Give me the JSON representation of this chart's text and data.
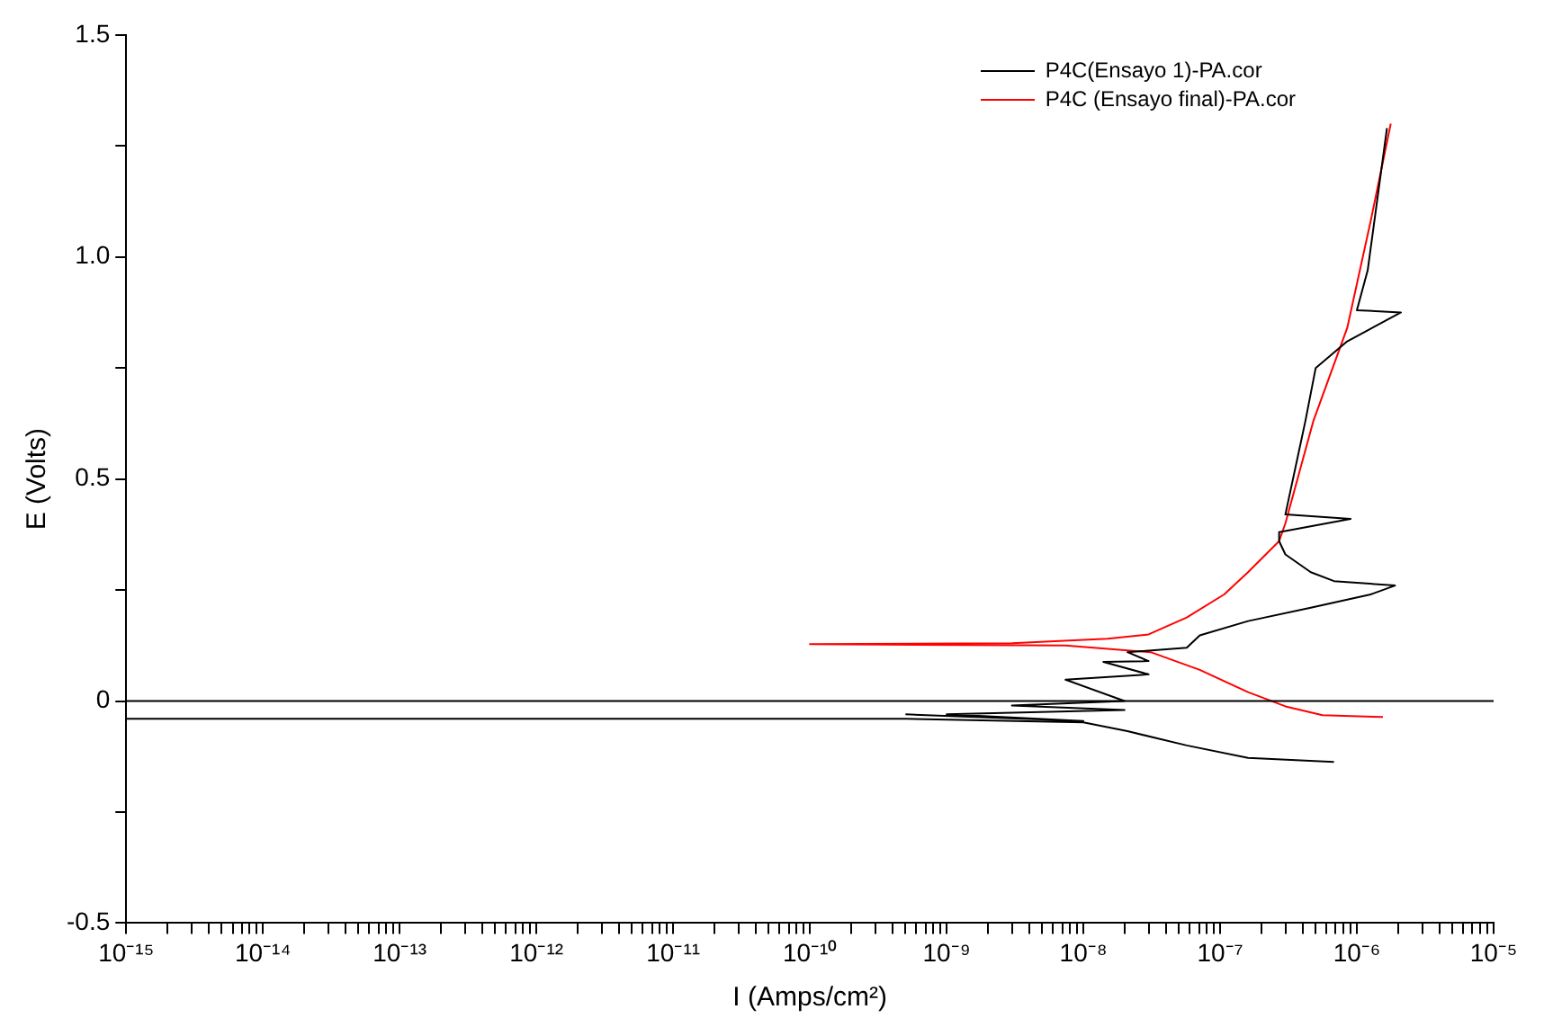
{
  "chart_data": {
    "type": "line",
    "xlabel": "I (Amps/cm²)",
    "ylabel": "E (Volts)",
    "log": "x",
    "marker": "none",
    "line_style": "solid",
    "grid": false,
    "legend": "top right",
    "xlim": [
      1e-15,
      1e-05
    ],
    "ylim": [
      -0.5,
      1.5
    ],
    "xticks": [
      {
        "value": 1e-15,
        "label": "10⁻¹⁵"
      },
      {
        "value": 1e-14,
        "label": "10⁻¹⁴"
      },
      {
        "value": 1e-13,
        "label": "10⁻¹³"
      },
      {
        "value": 1e-12,
        "label": "10⁻¹²"
      },
      {
        "value": 1e-11,
        "label": "10⁻¹¹"
      },
      {
        "value": 1e-10,
        "label": "10⁻¹⁰"
      },
      {
        "value": 1e-09,
        "label": "10⁻⁹"
      },
      {
        "value": 1e-08,
        "label": "10⁻⁸"
      },
      {
        "value": 1e-07,
        "label": "10⁻⁷"
      },
      {
        "value": 1e-06,
        "label": "10⁻⁶"
      },
      {
        "value": 1e-05,
        "label": "10⁻⁵"
      },
      {
        "value": 2e-15,
        "label": null
      },
      {
        "value": 3e-15,
        "label": null
      },
      {
        "value": 4e-15,
        "label": null
      },
      {
        "value": 5e-15,
        "label": null
      },
      {
        "value": 6e-15,
        "label": null
      },
      {
        "value": 7e-15,
        "label": null
      },
      {
        "value": 8e-15,
        "label": null
      },
      {
        "value": 9e-15,
        "label": null
      },
      {
        "value": 2e-14,
        "label": null
      },
      {
        "value": 3e-14,
        "label": null
      },
      {
        "value": 4e-14,
        "label": null
      },
      {
        "value": 5e-14,
        "label": null
      },
      {
        "value": 6e-14,
        "label": null
      },
      {
        "value": 7e-14,
        "label": null
      },
      {
        "value": 8e-14,
        "label": null
      },
      {
        "value": 9e-14,
        "label": null
      },
      {
        "value": 2e-13,
        "label": null
      },
      {
        "value": 3e-13,
        "label": null
      },
      {
        "value": 4e-13,
        "label": null
      },
      {
        "value": 5e-13,
        "label": null
      },
      {
        "value": 6e-13,
        "label": null
      },
      {
        "value": 7e-13,
        "label": null
      },
      {
        "value": 8e-13,
        "label": null
      },
      {
        "value": 9e-13,
        "label": null
      },
      {
        "value": 2e-12,
        "label": null
      },
      {
        "value": 3e-12,
        "label": null
      },
      {
        "value": 4e-12,
        "label": null
      },
      {
        "value": 5e-12,
        "label": null
      },
      {
        "value": 6e-12,
        "label": null
      },
      {
        "value": 7e-12,
        "label": null
      },
      {
        "value": 8e-12,
        "label": null
      },
      {
        "value": 9e-12,
        "label": null
      },
      {
        "value": 2e-11,
        "label": null
      },
      {
        "value": 3e-11,
        "label": null
      },
      {
        "value": 4e-11,
        "label": null
      },
      {
        "value": 5e-11,
        "label": null
      },
      {
        "value": 6e-11,
        "label": null
      },
      {
        "value": 7e-11,
        "label": null
      },
      {
        "value": 8e-11,
        "label": null
      },
      {
        "value": 9e-11,
        "label": null
      },
      {
        "value": 2e-10,
        "label": null
      },
      {
        "value": 3e-10,
        "label": null
      },
      {
        "value": 4e-10,
        "label": null
      },
      {
        "value": 5e-10,
        "label": null
      },
      {
        "value": 6e-10,
        "label": null
      },
      {
        "value": 7e-10,
        "label": null
      },
      {
        "value": 8e-10,
        "label": null
      },
      {
        "value": 9e-10,
        "label": null
      },
      {
        "value": 2e-09,
        "label": null
      },
      {
        "value": 3e-09,
        "label": null
      },
      {
        "value": 4e-09,
        "label": null
      },
      {
        "value": 5e-09,
        "label": null
      },
      {
        "value": 6e-09,
        "label": null
      },
      {
        "value": 7e-09,
        "label": null
      },
      {
        "value": 8e-09,
        "label": null
      },
      {
        "value": 9e-09,
        "label": null
      },
      {
        "value": 2e-08,
        "label": null
      },
      {
        "value": 3e-08,
        "label": null
      },
      {
        "value": 4e-08,
        "label": null
      },
      {
        "value": 5e-08,
        "label": null
      },
      {
        "value": 6e-08,
        "label": null
      },
      {
        "value": 7e-08,
        "label": null
      },
      {
        "value": 8e-08,
        "label": null
      },
      {
        "value": 9e-08,
        "label": null
      },
      {
        "value": 2e-07,
        "label": null
      },
      {
        "value": 3e-07,
        "label": null
      },
      {
        "value": 4e-07,
        "label": null
      },
      {
        "value": 5e-07,
        "label": null
      },
      {
        "value": 6e-07,
        "label": null
      },
      {
        "value": 7e-07,
        "label": null
      },
      {
        "value": 8e-07,
        "label": null
      },
      {
        "value": 9e-07,
        "label": null
      },
      {
        "value": 2e-06,
        "label": null
      },
      {
        "value": 3e-06,
        "label": null
      },
      {
        "value": 4e-06,
        "label": null
      },
      {
        "value": 5e-06,
        "label": null
      },
      {
        "value": 6e-06,
        "label": null
      },
      {
        "value": 7e-06,
        "label": null
      },
      {
        "value": 8e-06,
        "label": null
      },
      {
        "value": 9e-06,
        "label": null
      }
    ],
    "yticks": [
      -0.5,
      0,
      0.5,
      {
        "value": 1.0,
        "label": "1.0"
      },
      {
        "value": 1.5,
        "label": "1.5"
      },
      {
        "value": -0.25,
        "label": null
      },
      {
        "value": 0.25,
        "label": null
      },
      {
        "value": 0.75,
        "label": null
      },
      {
        "value": 1.25,
        "label": null
      }
    ],
    "ref_lines": [
      {
        "axis": "y",
        "value": 0,
        "color": "#000000"
      }
    ],
    "series": [
      {
        "name": "P4C(Ensayo 1)-PA.cor",
        "color": "#000000",
        "x": [
          1e-15,
          5e-10,
          1e-08,
          2.1e-08,
          5.7e-08,
          1.6e-07,
          6.8e-07,
          null,
          5e-10,
          1e-08,
          1e-09,
          2e-08,
          3e-09,
          2e-08,
          7.4e-09,
          3e-08,
          1.4e-08,
          3e-08,
          2.1e-08,
          5.7e-08,
          7.1e-08,
          1.6e-07,
          4.6e-07,
          1.26e-06,
          1.9e-06,
          6.8e-07,
          4.6e-07,
          3e-07,
          2.7e-07,
          2.7e-07,
          9e-07,
          3e-07,
          4.2e-07,
          5e-07,
          8.5e-07,
          2.1e-06,
          1e-06,
          1.2e-06,
          1.66e-06
        ],
        "values": [
          -0.04,
          -0.04,
          -0.048,
          -0.068,
          -0.1,
          -0.128,
          -0.137,
          null,
          -0.03,
          -0.045,
          -0.03,
          -0.02,
          -0.01,
          0,
          0.048,
          0.06,
          0.088,
          0.09,
          0.11,
          0.12,
          0.148,
          0.18,
          0.21,
          0.24,
          0.26,
          0.27,
          0.29,
          0.33,
          0.36,
          0.38,
          0.41,
          0.42,
          0.63,
          0.75,
          0.81,
          0.875,
          0.88,
          0.97,
          1.29
        ]
      },
      {
        "name": "P4C (Ensayo final)-PA.cor",
        "color": "#ff0000",
        "x": [
          1.55e-06,
          5.6e-07,
          3e-07,
          1.6e-07,
          7.1e-08,
          3.1e-08,
          7.4e-09,
          1e-10,
          3e-09,
          1.5e-08,
          3e-08,
          5.7e-08,
          1.07e-07,
          1.6e-07,
          2.7e-07,
          3e-07,
          4.8e-07,
          8.5e-07,
          1.26e-06,
          1.77e-06
        ],
        "values": [
          -0.036,
          -0.032,
          -0.012,
          0.02,
          0.07,
          0.11,
          0.125,
          0.128,
          0.13,
          0.14,
          0.15,
          0.188,
          0.24,
          0.29,
          0.36,
          0.4,
          0.63,
          0.84,
          1.08,
          1.3
        ]
      }
    ]
  }
}
